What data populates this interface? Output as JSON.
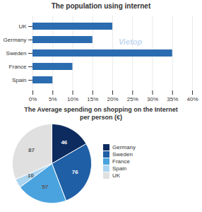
{
  "chart_data": [
    {
      "type": "bar",
      "title": "The population using internet",
      "orientation": "horizontal",
      "categories": [
        "Spain",
        "France",
        "Sweden",
        "Germany",
        "UK"
      ],
      "values": [
        5,
        10,
        35,
        15,
        20
      ],
      "color": "#2b6cb0",
      "xlim": [
        0,
        40
      ],
      "xticks": [
        {
          "value": 0,
          "label": "0%"
        },
        {
          "value": 5,
          "label": "5%"
        },
        {
          "value": 10,
          "label": "10%"
        },
        {
          "value": 15,
          "label": "15%"
        },
        {
          "value": 20,
          "label": "20%"
        },
        {
          "value": 25,
          "label": "25%"
        },
        {
          "value": 30,
          "label": "30%"
        },
        {
          "value": 35,
          "label": "35%"
        },
        {
          "value": 40,
          "label": "40%"
        }
      ],
      "grid": true,
      "annotations": [
        "Vietop"
      ]
    },
    {
      "type": "pie",
      "title": "The Average spending on shopping on the Internet\nper person (€)",
      "categories": [
        "Germany",
        "Sweden",
        "France",
        "Spain",
        "UK"
      ],
      "values": [
        46,
        76,
        57,
        10,
        87
      ],
      "colors": [
        "#0d2b5e",
        "#1f5fa6",
        "#4aa3df",
        "#aad4f0",
        "#e0e0e0"
      ],
      "data_labels": true,
      "legend": "right"
    }
  ]
}
